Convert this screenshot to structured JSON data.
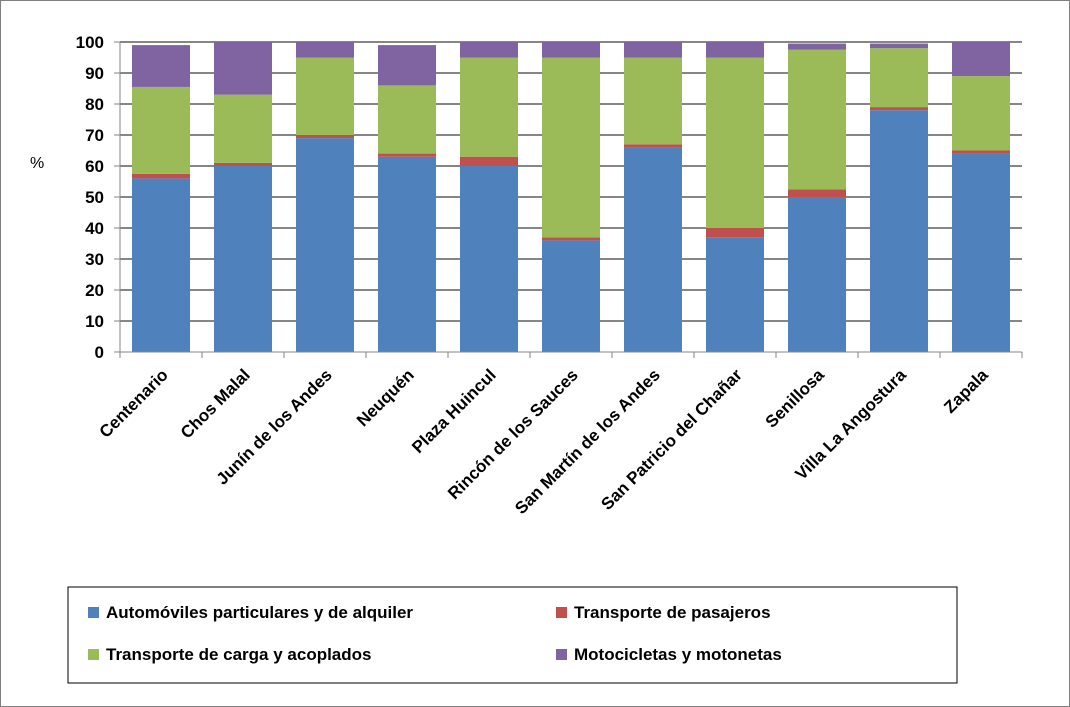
{
  "chart_data": {
    "type": "bar",
    "stacked": true,
    "ylabel": "%",
    "xlabel": "",
    "title": "",
    "ylim": [
      0,
      100
    ],
    "yticks": [
      0,
      10,
      20,
      30,
      40,
      50,
      60,
      70,
      80,
      90,
      100
    ],
    "grid": true,
    "legend_position": "bottom",
    "categories": [
      "Centenario",
      "Chos Malal",
      "Junín de los Andes",
      "Neuquén",
      "Plaza Huincul",
      "Rincón de los Sauces",
      "San Martín de los Andes",
      "San Patricio del Chañar",
      "Senillosa",
      "Villa La Angostura",
      "Zapala"
    ],
    "series": [
      {
        "name": "Automóviles particulares y de alquiler",
        "color": "#4f81bd",
        "values": [
          56,
          60,
          69,
          63,
          60,
          36,
          66,
          37,
          50,
          78,
          64
        ]
      },
      {
        "name": "Transporte de pasajeros",
        "color": "#c0504d",
        "values": [
          1.5,
          1,
          1,
          1,
          3,
          1,
          1,
          3,
          2.5,
          1,
          1
        ]
      },
      {
        "name": "Transporte de carga y acoplados",
        "color": "#9bbb59",
        "values": [
          28,
          22,
          25,
          22,
          32,
          58,
          28,
          55,
          45,
          19,
          24
        ]
      },
      {
        "name": "Motocicletas  y motonetas",
        "color": "#8064a2",
        "values": [
          13.5,
          17,
          5,
          13,
          5,
          5,
          5,
          5,
          2,
          1.5,
          11
        ]
      }
    ]
  }
}
